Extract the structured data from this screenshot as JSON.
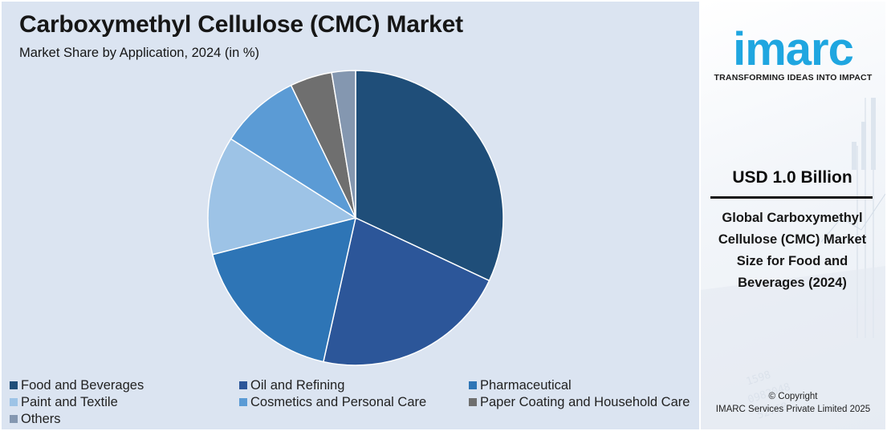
{
  "chart_data": {
    "type": "pie",
    "title": "Carboxymethyl Cellulose (CMC) Market",
    "subtitle": "Market Share by Application, 2024 (in %)",
    "series": [
      {
        "name": "Food and Beverages",
        "value": 32,
        "color": "#1f4e79"
      },
      {
        "name": "Oil and Refining",
        "value": 21.5,
        "color": "#2c5699"
      },
      {
        "name": "Pharmaceutical",
        "value": 17.5,
        "color": "#2e75b6"
      },
      {
        "name": "Paint and Textile",
        "value": 13,
        "color": "#9dc3e6"
      },
      {
        "name": "Cosmetics and Personal Care",
        "value": 8.8,
        "color": "#5b9bd5"
      },
      {
        "name": "Paper Coating and Household Care",
        "value": 4.6,
        "color": "#6f6f6f"
      },
      {
        "name": "Others",
        "value": 2.6,
        "color": "#8497b0"
      }
    ],
    "legend": "bottom"
  },
  "sidebar": {
    "logo_text": "imarc",
    "tagline": "TRANSFORMING IDEAS INTO IMPACT",
    "market_value": "USD 1.0 Billion",
    "value_description": "Global Carboxymethyl Cellulose (CMC) Market Size for Food and Beverages (2024)",
    "copyright_line1": "© Copyright",
    "copyright_line2": "IMARC Services Private Limited 2025",
    "logo_color": "#1fa6e0"
  }
}
